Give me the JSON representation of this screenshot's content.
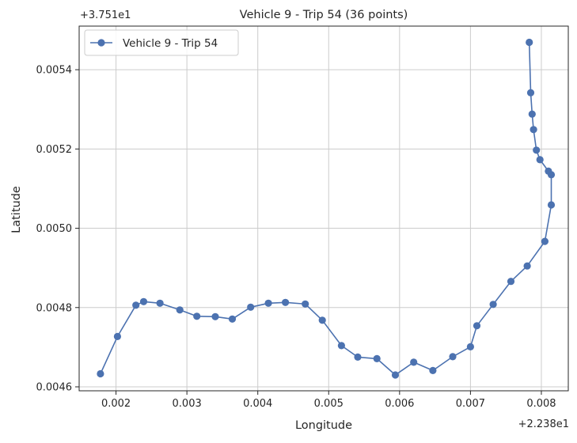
{
  "chart_data": {
    "type": "line",
    "title": "Vehicle 9 - Trip 54 (36 points)",
    "xlabel": "Longitude",
    "ylabel": "Latitude",
    "x_offset_label": "+2.238e1",
    "y_offset_label": "+3.751e1",
    "x_ticks": [
      "0.002",
      "0.003",
      "0.004",
      "0.005",
      "0.006",
      "0.007",
      "0.008"
    ],
    "y_ticks": [
      "0.0046",
      "0.0048",
      "0.0050",
      "0.0052",
      "0.0054"
    ],
    "xlim": [
      0.00148,
      0.00838
    ],
    "ylim": [
      0.00459,
      0.00551
    ],
    "grid": true,
    "legend_position": "top-left",
    "series": [
      {
        "name": "Vehicle 9 - Trip 54",
        "color": "#4c72b0",
        "marker": "circle",
        "x": [
          0.00178,
          0.00202,
          0.00228,
          0.00239,
          0.00262,
          0.0029,
          0.00314,
          0.0034,
          0.00364,
          0.0039,
          0.00415,
          0.00439,
          0.00467,
          0.00491,
          0.00518,
          0.00541,
          0.00568,
          0.00594,
          0.0062,
          0.00647,
          0.00675,
          0.007,
          0.00709,
          0.00732,
          0.00757,
          0.0078,
          0.00805,
          0.00814,
          0.00814,
          0.0081,
          0.00798,
          0.00793,
          0.00789,
          0.00787,
          0.00785,
          0.00783
        ],
        "y": [
          0.004633,
          0.004727,
          0.004806,
          0.004815,
          0.004811,
          0.004794,
          0.004778,
          0.004777,
          0.004771,
          0.004801,
          0.004811,
          0.004813,
          0.004809,
          0.004768,
          0.004704,
          0.004675,
          0.004671,
          0.00463,
          0.004662,
          0.004641,
          0.004676,
          0.004701,
          0.004754,
          0.004808,
          0.004866,
          0.004905,
          0.004967,
          0.005059,
          0.005135,
          0.005144,
          0.005173,
          0.005197,
          0.005249,
          0.005288,
          0.005342,
          0.005469
        ]
      }
    ]
  }
}
